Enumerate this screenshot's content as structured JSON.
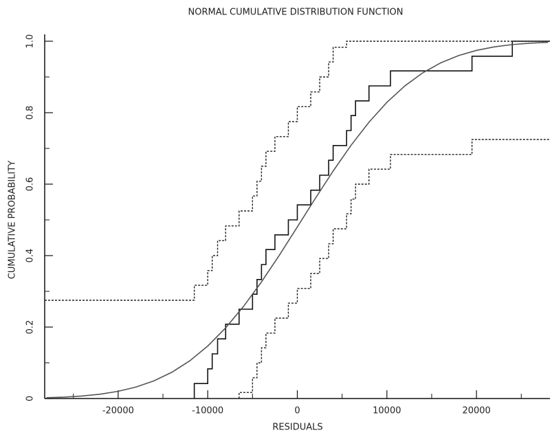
{
  "chart_data": {
    "type": "line",
    "title": "NORMAL CUMULATIVE DISTRIBUTION FUNCTION",
    "xlabel": "RESIDUALS",
    "ylabel": "CUMULATIVE PROBABILITY",
    "xlim": [
      -28200,
      28200
    ],
    "ylim": [
      0,
      1
    ],
    "xticks": [
      -20000,
      -10000,
      0,
      10000,
      20000
    ],
    "yticks": [
      0,
      0.2,
      0.4,
      0.6,
      0.8,
      {
        "value": 1,
        "label": "1.0"
      }
    ],
    "minor_ticks": true,
    "series": [
      {
        "color": "#111111",
        "step": true,
        "style": "solid",
        "x": [
          -11500,
          -10000,
          -9500,
          -8900,
          -8000,
          -6500,
          -5000,
          -4500,
          -4000,
          -3500,
          -2500,
          -1000,
          0,
          1500,
          2500,
          3500,
          4000,
          5500,
          6000,
          6500,
          8000,
          10400,
          19500,
          24000
        ],
        "values": [
          0.042,
          0.083,
          0.125,
          0.167,
          0.208,
          0.25,
          0.292,
          0.333,
          0.375,
          0.417,
          0.458,
          0.5,
          0.542,
          0.583,
          0.625,
          0.667,
          0.708,
          0.75,
          0.792,
          0.833,
          0.875,
          0.917,
          0.958,
          1.0
        ]
      },
      {
        "color": "#222222",
        "step": true,
        "style": "dotted",
        "x": [
          -28200,
          -11500,
          -10000,
          -9500,
          -8900,
          -8000,
          -6500,
          -5000,
          -4500,
          -4000,
          -3500,
          -2500,
          -1000,
          0,
          1500,
          2500,
          3500,
          4000,
          5500
        ],
        "values": [
          0.275,
          0.317,
          0.358,
          0.4,
          0.442,
          0.483,
          0.525,
          0.567,
          0.608,
          0.65,
          0.692,
          0.733,
          0.775,
          0.817,
          0.858,
          0.9,
          0.942,
          0.983,
          1
        ]
      },
      {
        "color": "#222222",
        "step": true,
        "style": "dotted",
        "x": [
          -6500,
          -5000,
          -4500,
          -4000,
          -3500,
          -2500,
          -1000,
          0,
          1500,
          2500,
          3500,
          4000,
          5500,
          6000,
          6500,
          8000,
          10400,
          19500,
          24000
        ],
        "values": [
          0.017,
          0.058,
          0.1,
          0.142,
          0.183,
          0.225,
          0.267,
          0.308,
          0.35,
          0.392,
          0.433,
          0.475,
          0.517,
          0.558,
          0.6,
          0.642,
          0.683,
          0.725,
          0.725
        ]
      },
      {
        "color": "#555555",
        "step": false,
        "style": "solid",
        "x": [
          -28000,
          -26000,
          -24000,
          -22000,
          -20000,
          -18000,
          -16000,
          -14000,
          -12000,
          -10000,
          -8000,
          -6000,
          -4000,
          -2000,
          0,
          2000,
          4000,
          6000,
          8000,
          10000,
          12000,
          14000,
          16000,
          18000,
          20000,
          22000,
          24000,
          26000,
          28000
        ],
        "values": [
          0.0022,
          0.004,
          0.0071,
          0.0122,
          0.0202,
          0.0322,
          0.0495,
          0.0735,
          0.1056,
          0.1469,
          0.1977,
          0.2578,
          0.3264,
          0.4013,
          0.4801,
          0.5596,
          0.6368,
          0.7088,
          0.7734,
          0.8289,
          0.8749,
          0.9115,
          0.9394,
          0.9599,
          0.9744,
          0.9842,
          0.9906,
          0.9946,
          0.997
        ]
      }
    ]
  }
}
